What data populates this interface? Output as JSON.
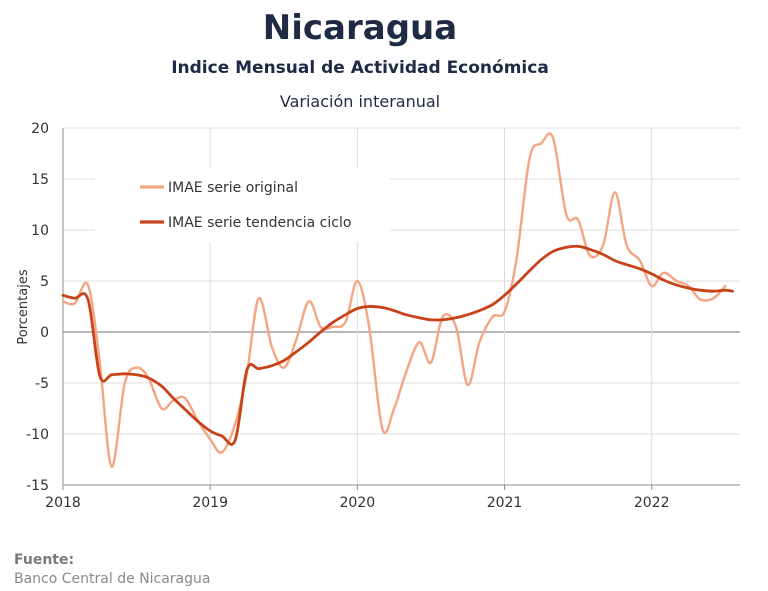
{
  "header": {
    "title": "Nicaragua",
    "subtitle": "Indice Mensual de  Actividad Económica",
    "subtitle2": "Variación interanual"
  },
  "footer": {
    "source_label": "Fuente:",
    "source_value": "Banco Central de Nicaragua"
  },
  "chart_data": {
    "type": "line",
    "title": "Nicaragua",
    "ylabel": "Porcentajes",
    "xlabel": "",
    "ylim": [
      -15,
      20
    ],
    "yticks": [
      20,
      15,
      10,
      5,
      0,
      -5,
      -10,
      -15
    ],
    "xlim": [
      2018,
      2022.6
    ],
    "xticks": [
      {
        "value": 2018,
        "label": "2018"
      },
      {
        "value": 2019,
        "label": "2019"
      },
      {
        "value": 2020,
        "label": "2020"
      },
      {
        "value": 2021,
        "label": "2021"
      },
      {
        "value": 2022,
        "label": "2022"
      }
    ],
    "grid": true,
    "legend_position": "top-left",
    "series": [
      {
        "name": "IMAE serie original",
        "color": "#f4a582",
        "points": [
          [
            2018.0,
            3.0
          ],
          [
            2018.08,
            2.8
          ],
          [
            2018.17,
            4.6
          ],
          [
            2018.25,
            -3.0
          ],
          [
            2018.33,
            -13.2
          ],
          [
            2018.42,
            -5.0
          ],
          [
            2018.5,
            -3.5
          ],
          [
            2018.58,
            -4.5
          ],
          [
            2018.67,
            -7.5
          ],
          [
            2018.75,
            -6.7
          ],
          [
            2018.83,
            -6.5
          ],
          [
            2018.92,
            -8.8
          ],
          [
            2019.0,
            -10.5
          ],
          [
            2019.08,
            -11.8
          ],
          [
            2019.17,
            -9.0
          ],
          [
            2019.25,
            -4.0
          ],
          [
            2019.33,
            3.3
          ],
          [
            2019.42,
            -1.5
          ],
          [
            2019.5,
            -3.5
          ],
          [
            2019.58,
            -1.0
          ],
          [
            2019.67,
            3.0
          ],
          [
            2019.75,
            0.5
          ],
          [
            2019.83,
            0.5
          ],
          [
            2019.92,
            1.0
          ],
          [
            2020.0,
            5.0
          ],
          [
            2020.08,
            0.5
          ],
          [
            2020.17,
            -9.5
          ],
          [
            2020.25,
            -7.5
          ],
          [
            2020.33,
            -4.0
          ],
          [
            2020.42,
            -1.0
          ],
          [
            2020.5,
            -3.0
          ],
          [
            2020.58,
            1.5
          ],
          [
            2020.67,
            0.5
          ],
          [
            2020.75,
            -5.2
          ],
          [
            2020.83,
            -1.0
          ],
          [
            2020.92,
            1.5
          ],
          [
            2021.0,
            2.0
          ],
          [
            2021.08,
            7.0
          ],
          [
            2021.17,
            17.0
          ],
          [
            2021.25,
            18.5
          ],
          [
            2021.33,
            19.0
          ],
          [
            2021.42,
            11.5
          ],
          [
            2021.5,
            11.0
          ],
          [
            2021.58,
            7.5
          ],
          [
            2021.67,
            8.5
          ],
          [
            2021.75,
            13.7
          ],
          [
            2021.83,
            8.5
          ],
          [
            2021.92,
            7.0
          ],
          [
            2022.0,
            4.5
          ],
          [
            2022.08,
            5.8
          ],
          [
            2022.17,
            5.0
          ],
          [
            2022.25,
            4.5
          ],
          [
            2022.33,
            3.2
          ],
          [
            2022.42,
            3.3
          ],
          [
            2022.5,
            4.5
          ]
        ]
      },
      {
        "name": "IMAE serie  tendencia ciclo",
        "color": "#c8431a",
        "points": [
          [
            2018.0,
            3.6
          ],
          [
            2018.08,
            3.3
          ],
          [
            2018.17,
            3.2
          ],
          [
            2018.25,
            -4.3
          ],
          [
            2018.33,
            -4.2
          ],
          [
            2018.42,
            -4.1
          ],
          [
            2018.5,
            -4.2
          ],
          [
            2018.58,
            -4.5
          ],
          [
            2018.67,
            -5.3
          ],
          [
            2018.75,
            -6.5
          ],
          [
            2018.83,
            -7.6
          ],
          [
            2018.92,
            -8.8
          ],
          [
            2019.0,
            -9.7
          ],
          [
            2019.08,
            -10.2
          ],
          [
            2019.17,
            -10.6
          ],
          [
            2019.25,
            -3.7
          ],
          [
            2019.33,
            -3.6
          ],
          [
            2019.42,
            -3.3
          ],
          [
            2019.5,
            -2.8
          ],
          [
            2019.58,
            -2.0
          ],
          [
            2019.67,
            -1.0
          ],
          [
            2019.75,
            0.0
          ],
          [
            2019.83,
            0.9
          ],
          [
            2019.92,
            1.7
          ],
          [
            2020.0,
            2.3
          ],
          [
            2020.08,
            2.5
          ],
          [
            2020.17,
            2.4
          ],
          [
            2020.25,
            2.1
          ],
          [
            2020.33,
            1.7
          ],
          [
            2020.42,
            1.4
          ],
          [
            2020.5,
            1.2
          ],
          [
            2020.58,
            1.2
          ],
          [
            2020.67,
            1.4
          ],
          [
            2020.75,
            1.7
          ],
          [
            2020.83,
            2.1
          ],
          [
            2020.92,
            2.7
          ],
          [
            2021.0,
            3.6
          ],
          [
            2021.08,
            4.7
          ],
          [
            2021.17,
            6.0
          ],
          [
            2021.25,
            7.1
          ],
          [
            2021.33,
            7.9
          ],
          [
            2021.42,
            8.3
          ],
          [
            2021.5,
            8.4
          ],
          [
            2021.58,
            8.1
          ],
          [
            2021.67,
            7.6
          ],
          [
            2021.75,
            7.0
          ],
          [
            2021.83,
            6.6
          ],
          [
            2021.92,
            6.2
          ],
          [
            2022.0,
            5.7
          ],
          [
            2022.08,
            5.1
          ],
          [
            2022.17,
            4.6
          ],
          [
            2022.25,
            4.3
          ],
          [
            2022.33,
            4.1
          ],
          [
            2022.42,
            4.0
          ],
          [
            2022.5,
            4.1
          ],
          [
            2022.55,
            4.0
          ]
        ]
      }
    ]
  }
}
